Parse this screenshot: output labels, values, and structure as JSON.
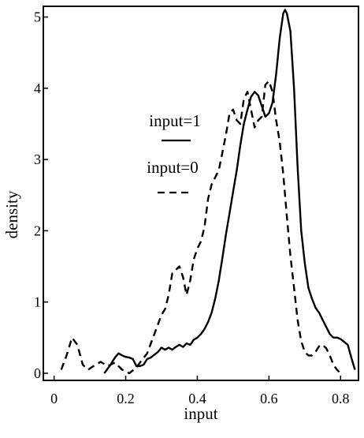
{
  "chart_data": {
    "type": "line",
    "xlabel": "input",
    "ylabel": "density",
    "xlim": [
      -0.03,
      0.85
    ],
    "ylim": [
      -0.1,
      5.15
    ],
    "x_ticks": [
      0,
      0.2,
      0.4,
      0.6,
      0.8
    ],
    "x_tick_labels": [
      "0",
      "0.2",
      "0.4",
      "0.6",
      "0.8"
    ],
    "y_ticks": [
      0,
      1,
      2,
      3,
      4,
      5
    ],
    "y_tick_labels": [
      "0",
      "1",
      "2",
      "3",
      "4",
      "5"
    ],
    "grid": false,
    "legend_placement": "center",
    "series": [
      {
        "name": "input=1",
        "line_style": "solid",
        "color": "#000000",
        "x": [
          0.14,
          0.155,
          0.17,
          0.18,
          0.19,
          0.2,
          0.21,
          0.22,
          0.23,
          0.24,
          0.25,
          0.26,
          0.27,
          0.28,
          0.29,
          0.3,
          0.31,
          0.32,
          0.33,
          0.34,
          0.35,
          0.36,
          0.37,
          0.38,
          0.39,
          0.4,
          0.41,
          0.42,
          0.43,
          0.44,
          0.45,
          0.46,
          0.47,
          0.48,
          0.49,
          0.5,
          0.51,
          0.52,
          0.53,
          0.54,
          0.55,
          0.56,
          0.57,
          0.58,
          0.59,
          0.6,
          0.61,
          0.62,
          0.63,
          0.64,
          0.645,
          0.65,
          0.66,
          0.67,
          0.68,
          0.69,
          0.7,
          0.71,
          0.72,
          0.73,
          0.74,
          0.75,
          0.76,
          0.77,
          0.78,
          0.79,
          0.8,
          0.81,
          0.82,
          0.83,
          0.84
        ],
        "y": [
          0.0,
          0.1,
          0.22,
          0.28,
          0.25,
          0.23,
          0.22,
          0.2,
          0.1,
          0.1,
          0.12,
          0.2,
          0.22,
          0.26,
          0.3,
          0.36,
          0.33,
          0.36,
          0.33,
          0.37,
          0.4,
          0.37,
          0.42,
          0.4,
          0.47,
          0.5,
          0.55,
          0.62,
          0.72,
          0.85,
          1.05,
          1.3,
          1.62,
          1.95,
          2.25,
          2.55,
          2.85,
          3.2,
          3.5,
          3.7,
          3.88,
          3.95,
          3.9,
          3.75,
          3.6,
          3.65,
          3.8,
          4.2,
          4.7,
          5.05,
          5.1,
          5.05,
          4.8,
          4.0,
          2.9,
          2.0,
          1.55,
          1.2,
          1.05,
          0.92,
          0.85,
          0.75,
          0.65,
          0.55,
          0.5,
          0.5,
          0.48,
          0.44,
          0.4,
          0.22,
          0.05
        ]
      },
      {
        "name": "input=0",
        "line_style": "dashed",
        "color": "#000000",
        "x": [
          0.02,
          0.035,
          0.05,
          0.065,
          0.08,
          0.095,
          0.11,
          0.13,
          0.15,
          0.17,
          0.19,
          0.21,
          0.23,
          0.24,
          0.26,
          0.28,
          0.3,
          0.31,
          0.32,
          0.33,
          0.34,
          0.35,
          0.36,
          0.37,
          0.38,
          0.39,
          0.4,
          0.41,
          0.42,
          0.43,
          0.44,
          0.45,
          0.46,
          0.47,
          0.48,
          0.49,
          0.5,
          0.51,
          0.52,
          0.53,
          0.54,
          0.55,
          0.56,
          0.57,
          0.58,
          0.59,
          0.6,
          0.61,
          0.62,
          0.63,
          0.64,
          0.65,
          0.66,
          0.67,
          0.68,
          0.69,
          0.7,
          0.71,
          0.72,
          0.73,
          0.74,
          0.75,
          0.76,
          0.77,
          0.78,
          0.79,
          0.8
        ],
        "y": [
          0.05,
          0.25,
          0.5,
          0.4,
          0.12,
          0.05,
          0.1,
          0.16,
          0.1,
          0.15,
          0.05,
          0.0,
          0.08,
          0.15,
          0.28,
          0.55,
          0.82,
          0.9,
          1.1,
          1.4,
          1.45,
          1.5,
          1.35,
          1.1,
          1.3,
          1.6,
          1.75,
          1.85,
          2.05,
          2.45,
          2.65,
          2.75,
          2.85,
          3.1,
          3.35,
          3.65,
          3.7,
          3.55,
          3.5,
          3.85,
          3.95,
          3.7,
          3.45,
          3.55,
          3.6,
          4.05,
          4.1,
          3.95,
          3.55,
          3.25,
          2.8,
          2.2,
          1.65,
          1.2,
          0.75,
          0.45,
          0.3,
          0.25,
          0.25,
          0.3,
          0.38,
          0.4,
          0.35,
          0.25,
          0.12,
          0.05,
          0.0
        ]
      }
    ]
  }
}
